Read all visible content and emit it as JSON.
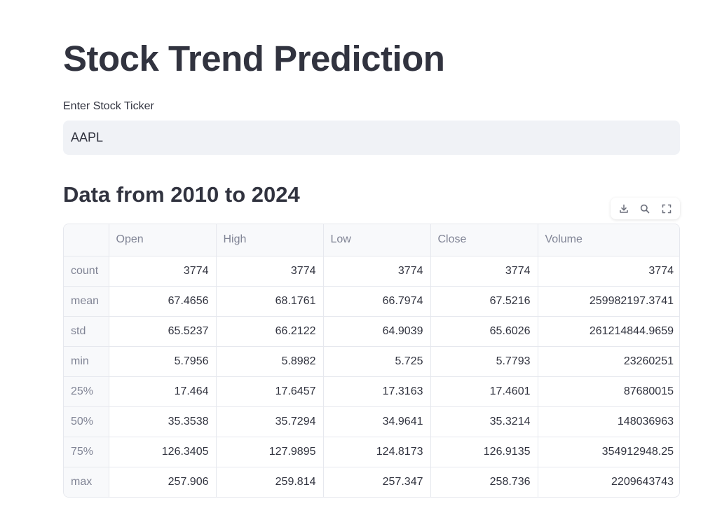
{
  "header": {
    "title": "Stock Trend Prediction"
  },
  "ticker": {
    "label": "Enter Stock Ticker",
    "value": "AAPL"
  },
  "section": {
    "title": "Data from 2010 to 2024"
  },
  "toolbar": {
    "icons": [
      "download-icon",
      "search-icon",
      "fullscreen-icon"
    ]
  },
  "table": {
    "columns": [
      "",
      "Open",
      "High",
      "Low",
      "Close",
      "Volume"
    ],
    "rows": [
      {
        "index": "count",
        "values": [
          "3774",
          "3774",
          "3774",
          "3774",
          "3774"
        ]
      },
      {
        "index": "mean",
        "values": [
          "67.4656",
          "68.1761",
          "66.7974",
          "67.5216",
          "259982197.3741"
        ]
      },
      {
        "index": "std",
        "values": [
          "65.5237",
          "66.2122",
          "64.9039",
          "65.6026",
          "261214844.9659"
        ]
      },
      {
        "index": "min",
        "values": [
          "5.7956",
          "5.8982",
          "5.725",
          "5.7793",
          "23260251"
        ]
      },
      {
        "index": "25%",
        "values": [
          "17.464",
          "17.6457",
          "17.3163",
          "17.4601",
          "87680015"
        ]
      },
      {
        "index": "50%",
        "values": [
          "35.3538",
          "35.7294",
          "34.9641",
          "35.3214",
          "148036963"
        ]
      },
      {
        "index": "75%",
        "values": [
          "126.3405",
          "127.9895",
          "124.8173",
          "126.9135",
          "354912948.25"
        ]
      },
      {
        "index": "max",
        "values": [
          "257.906",
          "259.814",
          "257.347",
          "258.736",
          "2209643743"
        ]
      }
    ]
  },
  "colors": {
    "text": "#31333f",
    "muted": "#808495",
    "input_bg": "#f0f2f6",
    "header_bg": "#f8f9fb",
    "border": "#e6e8ee"
  }
}
